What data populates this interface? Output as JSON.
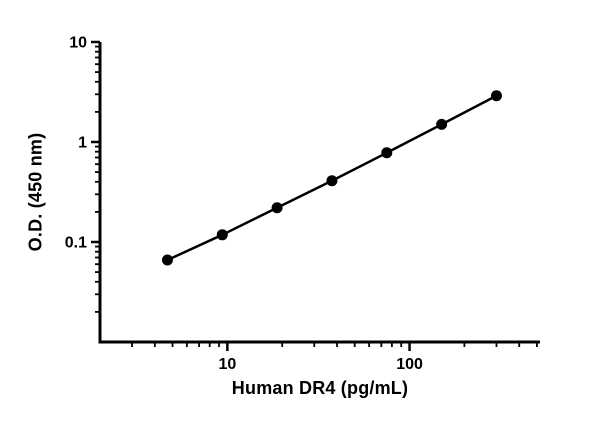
{
  "figure": {
    "background": "#ffffff",
    "foreground": "#000000"
  },
  "chart_data": {
    "type": "line",
    "title": "",
    "xlabel": "Human DR4 (pg/mL)",
    "ylabel": "O.D. (450 nm)",
    "x_scale": "log",
    "y_scale": "log",
    "xlim": [
      2,
      520
    ],
    "ylim": [
      0.01,
      10
    ],
    "x_major_ticks": [
      10,
      100
    ],
    "y_major_ticks": [
      0.1,
      1,
      10
    ],
    "x": [
      4.69,
      9.38,
      18.75,
      37.5,
      75,
      150,
      300
    ],
    "y": [
      0.066,
      0.118,
      0.22,
      0.41,
      0.78,
      1.5,
      2.9
    ],
    "marker": "filled-circle",
    "line_style": "solid",
    "color": "#000000",
    "grid": false,
    "legend": false
  }
}
